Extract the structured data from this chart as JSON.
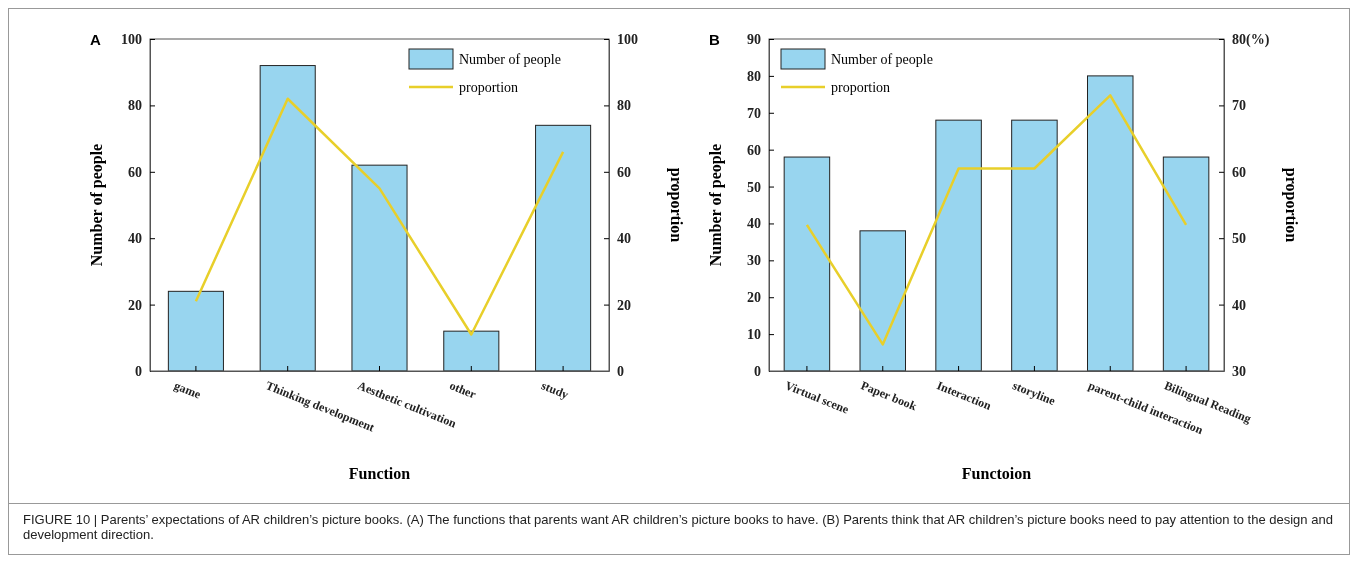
{
  "chart_data": [
    {
      "type": "bar",
      "title": "A",
      "xlabel": "Function",
      "ylabel": "Number of people",
      "y2label": "proportion",
      "categories": [
        "game",
        "Thinking development",
        "Aesthetic cultivation",
        "other",
        "study"
      ],
      "series": [
        {
          "name": "Number of people",
          "color": "#98d5ef",
          "values": [
            24,
            92,
            62,
            12,
            74
          ]
        },
        {
          "name": "proportion",
          "type": "line",
          "axis": "y2",
          "color": "#e8cf2a",
          "values": [
            21,
            82,
            55,
            11,
            66
          ]
        }
      ],
      "ylim": [
        0,
        100
      ],
      "yticks": [
        0,
        20,
        40,
        60,
        80,
        100
      ],
      "y2lim": [
        0,
        100
      ],
      "y2ticks": [
        0,
        20,
        40,
        60,
        80,
        100
      ],
      "legend": "top right",
      "grid": false
    },
    {
      "type": "bar",
      "title": "B",
      "xlabel": "Functoion",
      "ylabel": "Number of people",
      "y2label": "proportion",
      "categories": [
        "Virtual scene",
        "Paper book",
        "Interaction",
        "storyline",
        "parent-child interaction",
        "Bilingual Reading"
      ],
      "series": [
        {
          "name": "Number of people",
          "color": "#98d5ef",
          "values": [
            58,
            38,
            68,
            68,
            80,
            58
          ]
        },
        {
          "name": "proportion",
          "type": "line",
          "axis": "y2",
          "color": "#e8cf2a",
          "values": [
            52,
            34,
            60.5,
            60.5,
            71.5,
            52
          ]
        }
      ],
      "ylim": [
        0,
        90
      ],
      "yticks": [
        0,
        10,
        20,
        30,
        40,
        50,
        60,
        70,
        80,
        90
      ],
      "y2lim": [
        30,
        80
      ],
      "y2ticks": [
        30,
        40,
        50,
        60,
        70,
        {
          "value": 80,
          "label": "80(%)"
        }
      ],
      "legend": "top left",
      "grid": false,
      "annotations": [
        "FIGURE 10 | Parents’ expectations of AR children’s picture books. (A) The functions that parents want AR children’s picture books to have. (B) Parents think that AR children’s picture books need to pay attention to the design and development direction."
      ]
    }
  ]
}
